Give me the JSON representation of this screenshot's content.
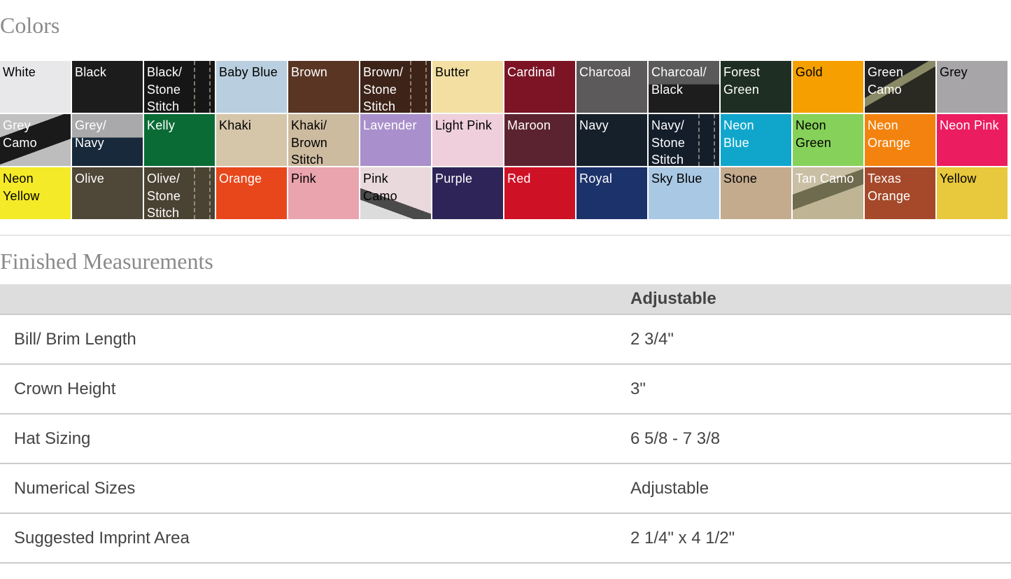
{
  "colors_title": "Colors",
  "swatches": [
    {
      "label": "White",
      "bg": "#e8e8ea",
      "fg": "#000"
    },
    {
      "label": "Black",
      "bg": "#1c1c1c",
      "fg": "#fff"
    },
    {
      "label": "Black/\nStone\nStitch",
      "bg": "#161616",
      "fg": "#fff",
      "stitch": true
    },
    {
      "label": "Baby Blue",
      "bg": "#b9cfdf",
      "fg": "#000"
    },
    {
      "label": "Brown",
      "bg": "#5a3524",
      "fg": "#fff"
    },
    {
      "label": "Brown/\nStone\nStitch",
      "bg": "#3d2318",
      "fg": "#fff",
      "stitch": true
    },
    {
      "label": "Butter",
      "bg": "#f3dfa2",
      "fg": "#000"
    },
    {
      "label": "Cardinal",
      "bg": "#7c1426",
      "fg": "#fff"
    },
    {
      "label": "Charcoal",
      "bg": "#5c5a5b",
      "fg": "#fff"
    },
    {
      "label": "Charcoal/\nBlack",
      "bg": "linear-gradient(#5a5a5a 0 45%,#1d1d1d 45%)",
      "fg": "#fff"
    },
    {
      "label": "Forest\nGreen",
      "bg": "#1f2e22",
      "fg": "#fff"
    },
    {
      "label": "Gold",
      "bg": "#f5a000",
      "fg": "#000"
    },
    {
      "label": "Green\nCamo",
      "bg": "linear-gradient(150deg,#222 0 40%,#8a8a66 40% 50%,#2a2a22 50%)",
      "fg": "#fff"
    },
    {
      "label": "Grey",
      "bg": "#a7a5a8",
      "fg": "#000"
    },
    {
      "label": "Grey\nCamo",
      "bg": "linear-gradient(160deg,#c0c0c0 0 30%,#1a1a1a 30% 65%,#bdbdbd 65%)",
      "fg": "#fff"
    },
    {
      "label": "Grey/\nNavy",
      "bg": "linear-gradient(#a9a9ab 0 45%,#17293a 45%)",
      "fg": "#fff"
    },
    {
      "label": "Kelly",
      "bg": "#0a6b35",
      "fg": "#fff"
    },
    {
      "label": "Khaki",
      "bg": "#d5c6aa",
      "fg": "#000"
    },
    {
      "label": "Khaki/\nBrown\nStitch",
      "bg": "#cdbba0",
      "fg": "#000",
      "stitch": true
    },
    {
      "label": "Lavender",
      "bg": "#a98fcb",
      "fg": "#fff"
    },
    {
      "label": "Light Pink",
      "bg": "#efcfdb",
      "fg": "#000"
    },
    {
      "label": "Maroon",
      "bg": "#5b2330",
      "fg": "#fff"
    },
    {
      "label": "Navy",
      "bg": "#15202b",
      "fg": "#fff"
    },
    {
      "label": "Navy/\nStone\nStitch",
      "bg": "#141d2a",
      "fg": "#fff",
      "stitch": true
    },
    {
      "label": "Neon\nBlue",
      "bg": "#10a6cc",
      "fg": "#fff"
    },
    {
      "label": "Neon\nGreen",
      "bg": "#86d15a",
      "fg": "#000"
    },
    {
      "label": "Neon\nOrange",
      "bg": "#f3830e",
      "fg": "#fff"
    },
    {
      "label": "Neon Pink",
      "bg": "#ec1c60",
      "fg": "#fff"
    },
    {
      "label": "Neon\nYellow",
      "bg": "#f4ea28",
      "fg": "#000"
    },
    {
      "label": "Olive",
      "bg": "#4f4738",
      "fg": "#fff"
    },
    {
      "label": "Olive/\nStone\nStitch",
      "bg": "#4a4232",
      "fg": "#fff",
      "stitch": true
    },
    {
      "label": "Orange",
      "bg": "#e8471c",
      "fg": "#fff"
    },
    {
      "label": "Pink",
      "bg": "#eaa4ad",
      "fg": "#000"
    },
    {
      "label": "Pink\nCamo",
      "bg": "linear-gradient(200deg,#e9d9dd 0 60%,#4a4a4a 60% 75%,#dcdcdc 75%)",
      "fg": "#000"
    },
    {
      "label": "Purple",
      "bg": "#2f2457",
      "fg": "#fff"
    },
    {
      "label": "Red",
      "bg": "#cf1126",
      "fg": "#fff"
    },
    {
      "label": "Royal",
      "bg": "#1c326b",
      "fg": "#fff"
    },
    {
      "label": "Sky Blue",
      "bg": "#a9c8e3",
      "fg": "#000"
    },
    {
      "label": "Stone",
      "bg": "#c4ab8e",
      "fg": "#000"
    },
    {
      "label": "Tan Camo",
      "bg": "linear-gradient(160deg,#c9bfa4 0 35%,#6f6b4e 35% 55%,#bfb595 55%)",
      "fg": "#fff"
    },
    {
      "label": "Texas\nOrange",
      "bg": "#a5492a",
      "fg": "#fff"
    },
    {
      "label": "Yellow",
      "bg": "#e8c83c",
      "fg": "#000"
    }
  ],
  "measurements_title": "Finished Measurements",
  "table": {
    "header": [
      "",
      "Adjustable"
    ],
    "rows": [
      [
        "Bill/ Brim Length",
        "2 3/4\""
      ],
      [
        "Crown Height",
        "3\""
      ],
      [
        "Hat Sizing",
        "6 5/8 - 7 3/8"
      ],
      [
        "Numerical Sizes",
        "Adjustable"
      ],
      [
        "Suggested Imprint Area",
        "2 1/4\" x 4 1/2\""
      ]
    ]
  }
}
